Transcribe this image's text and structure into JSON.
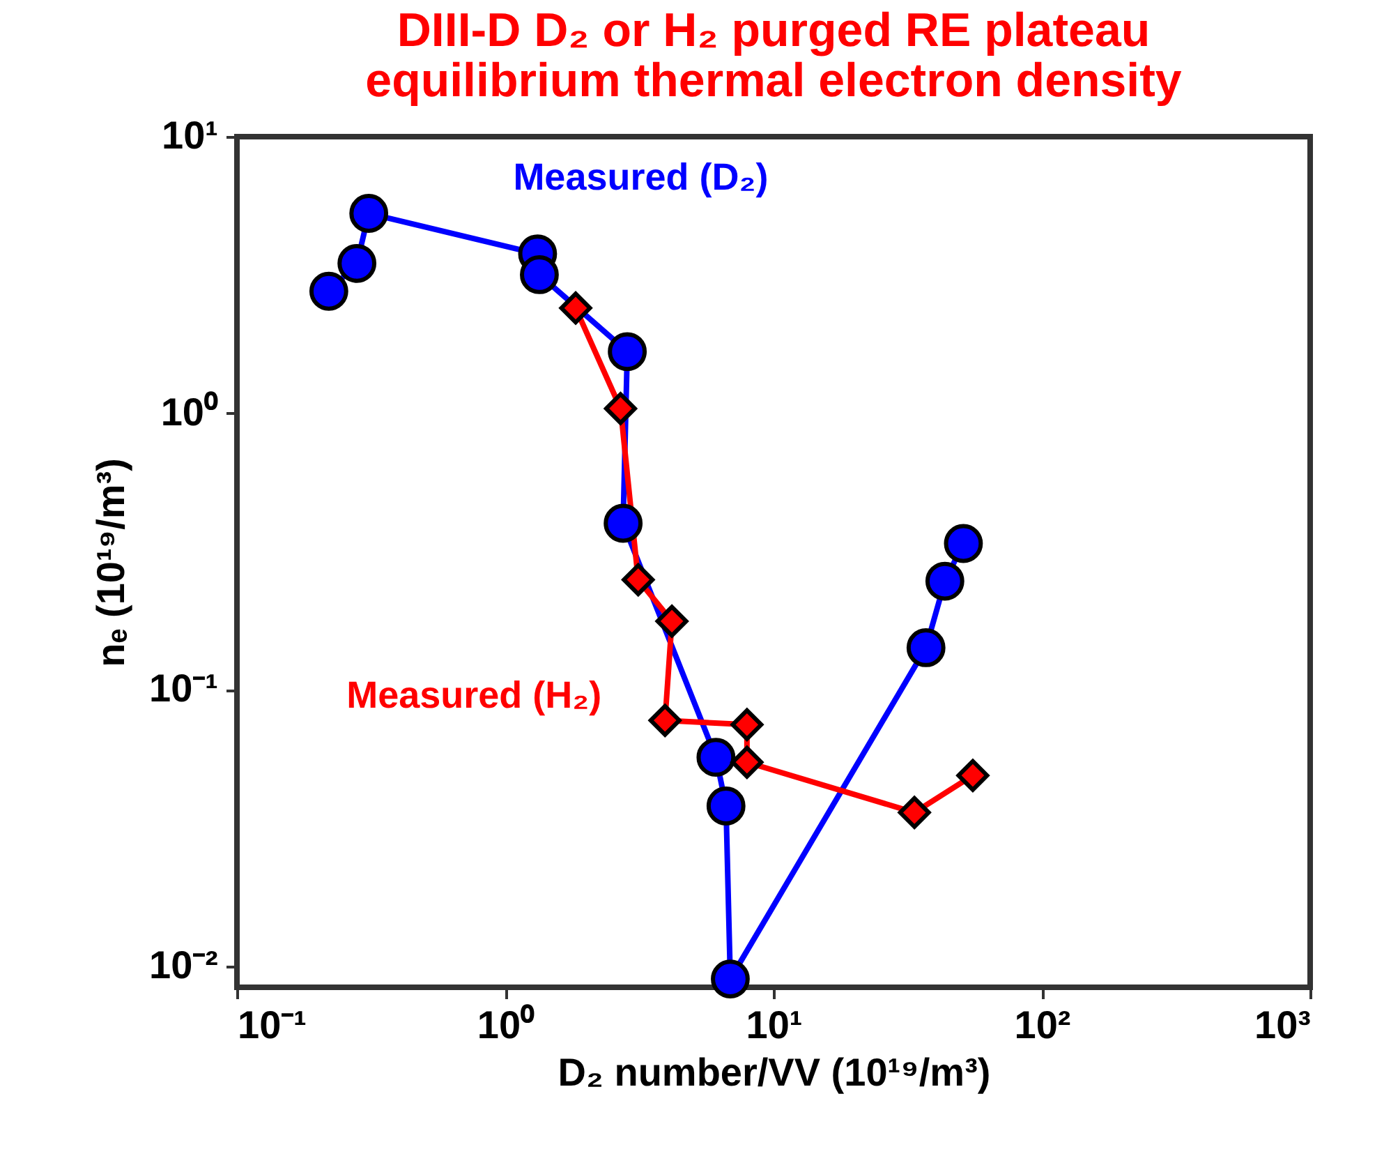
{
  "chart_data": {
    "type": "line",
    "title": [
      "DIII-D D₂ or H₂ purged RE plateau",
      "equilibrium thermal electron density"
    ],
    "xlabel": "D₂ number/VV (10¹⁹/m³)",
    "ylabel": "nₑ (10¹⁹/m³)",
    "log": "xy",
    "grid": false,
    "xlim": [
      0.1,
      1000
    ],
    "ylim": [
      0.0084,
      10
    ],
    "xticks": [
      {
        "value": 0.1,
        "label": "10⁻¹"
      },
      {
        "value": 1,
        "label": "10⁰"
      },
      {
        "value": 10,
        "label": "10¹"
      },
      {
        "value": 100,
        "label": "10²"
      },
      {
        "value": 1000,
        "label": "10³"
      }
    ],
    "yticks": [
      {
        "value": 0.01,
        "label": "10⁻²"
      },
      {
        "value": 0.1,
        "label": "10⁻¹"
      },
      {
        "value": 1,
        "label": "10⁰"
      },
      {
        "value": 10,
        "label": "10¹"
      }
    ],
    "series": [
      {
        "name": "Measured (D₂)",
        "color": "#0000ff",
        "marker": "circle",
        "x": [
          0.22,
          0.28,
          0.31,
          1.32,
          1.34,
          2.85,
          2.75,
          6.1,
          6.65,
          6.9,
          37,
          43.5,
          51
        ],
        "values": [
          2.76,
          3.48,
          5.28,
          3.77,
          3.17,
          1.67,
          0.4,
          0.057,
          0.038,
          0.009,
          0.142,
          0.247,
          0.338
        ]
      },
      {
        "name": "Measured (H₂)",
        "color": "#ff0000",
        "marker": "diamond",
        "x": [
          1.83,
          2.69,
          3.13,
          4.18,
          3.94,
          7.96,
          7.96,
          33.5,
          55.3
        ],
        "values": [
          2.4,
          1.04,
          0.25,
          0.177,
          0.0775,
          0.0748,
          0.0547,
          0.036,
          0.049
        ]
      }
    ]
  }
}
